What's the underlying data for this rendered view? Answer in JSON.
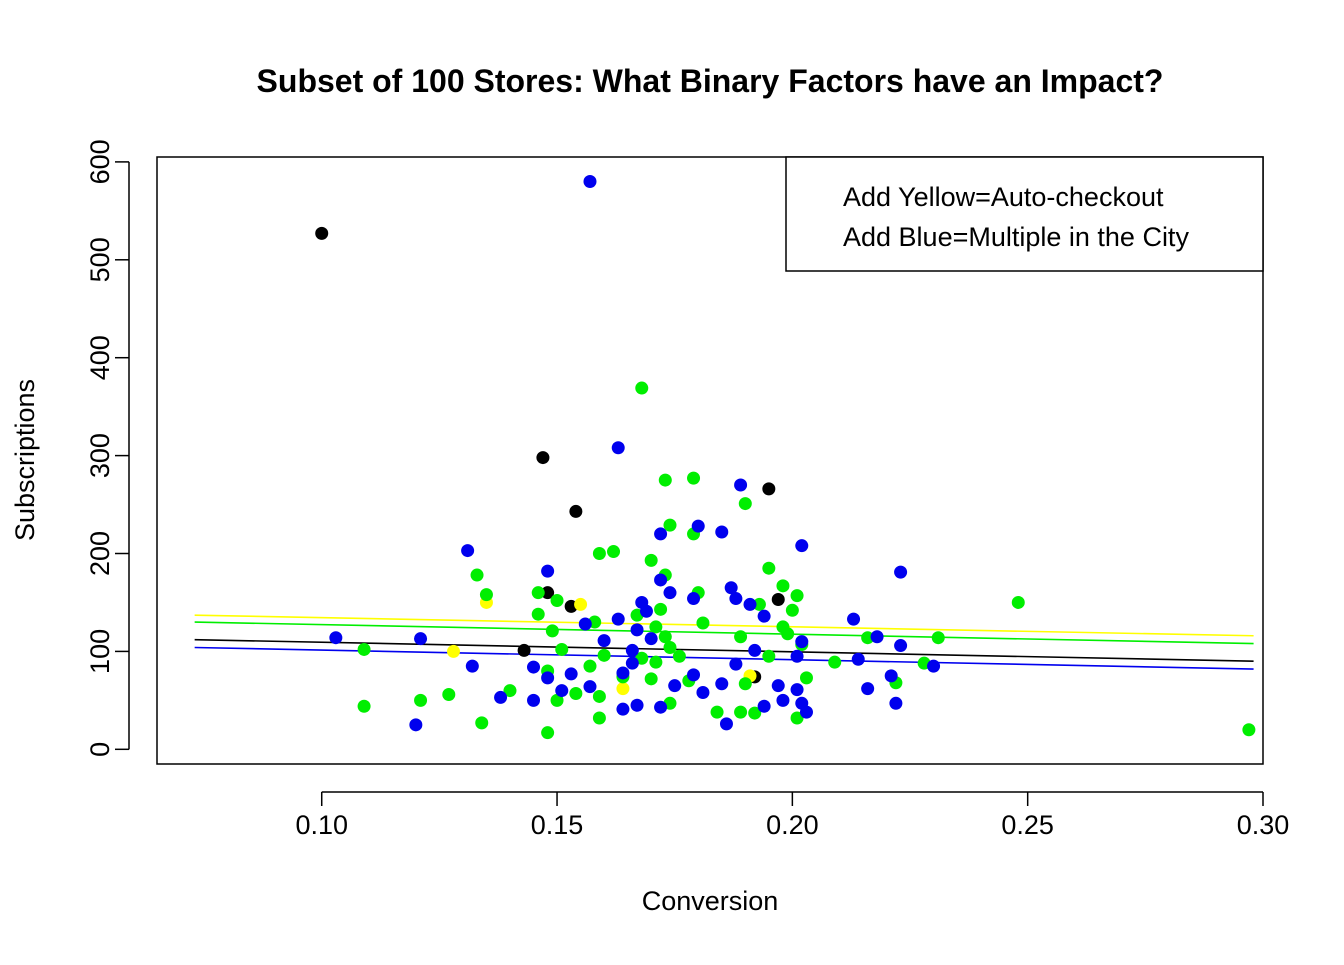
{
  "chart_data": {
    "type": "scatter",
    "title": "Subset of 100 Stores: What Binary Factors have an Impact?",
    "xlabel": "Conversion",
    "ylabel": "Subscriptions",
    "xlim": [
      0.065,
      0.3
    ],
    "ylim": [
      -15,
      605
    ],
    "x_ticks": [
      0.1,
      0.15,
      0.2,
      0.25,
      0.3
    ],
    "x_tick_labels": [
      "0.10",
      "0.15",
      "0.20",
      "0.25",
      "0.30"
    ],
    "y_ticks": [
      0,
      100,
      200,
      300,
      400,
      500,
      600
    ],
    "y_tick_labels": [
      "0",
      "100",
      "200",
      "300",
      "400",
      "500",
      "600"
    ],
    "grid": false,
    "legend": {
      "placement": "top-right",
      "entries": [
        "Add Yellow=Auto-checkout",
        "Add Blue=Multiple in the City"
      ]
    },
    "colors": {
      "black": "#000000",
      "yellow": "#FFFF00",
      "green": "#00EE00",
      "blue": "#0000EE"
    },
    "series": [
      {
        "color": "black",
        "points": [
          [
            0.1,
            527
          ],
          [
            0.147,
            298
          ],
          [
            0.154,
            243
          ],
          [
            0.195,
            266
          ],
          [
            0.148,
            160
          ],
          [
            0.153,
            146
          ],
          [
            0.143,
            101
          ],
          [
            0.192,
            74
          ],
          [
            0.197,
            153
          ]
        ]
      },
      {
        "color": "yellow",
        "points": [
          [
            0.135,
            150
          ],
          [
            0.128,
            100
          ],
          [
            0.164,
            62
          ],
          [
            0.191,
            75
          ],
          [
            0.155,
            148
          ]
        ]
      },
      {
        "color": "green",
        "points": [
          [
            0.168,
            369
          ],
          [
            0.173,
            275
          ],
          [
            0.179,
            277
          ],
          [
            0.19,
            251
          ],
          [
            0.174,
            229
          ],
          [
            0.179,
            220
          ],
          [
            0.162,
            202
          ],
          [
            0.159,
            200
          ],
          [
            0.17,
            193
          ],
          [
            0.195,
            185
          ],
          [
            0.133,
            178
          ],
          [
            0.173,
            178
          ],
          [
            0.198,
            167
          ],
          [
            0.135,
            158
          ],
          [
            0.146,
            160
          ],
          [
            0.18,
            160
          ],
          [
            0.15,
            152
          ],
          [
            0.193,
            148
          ],
          [
            0.201,
            157
          ],
          [
            0.248,
            150
          ],
          [
            0.146,
            138
          ],
          [
            0.172,
            143
          ],
          [
            0.2,
            142
          ],
          [
            0.158,
            130
          ],
          [
            0.167,
            137
          ],
          [
            0.171,
            125
          ],
          [
            0.149,
            121
          ],
          [
            0.173,
            115
          ],
          [
            0.181,
            129
          ],
          [
            0.198,
            125
          ],
          [
            0.199,
            118
          ],
          [
            0.216,
            114
          ],
          [
            0.231,
            114
          ],
          [
            0.109,
            102
          ],
          [
            0.16,
            96
          ],
          [
            0.174,
            104
          ],
          [
            0.189,
            115
          ],
          [
            0.195,
            95
          ],
          [
            0.202,
            107
          ],
          [
            0.151,
            102
          ],
          [
            0.157,
            85
          ],
          [
            0.168,
            93
          ],
          [
            0.171,
            89
          ],
          [
            0.176,
            95
          ],
          [
            0.209,
            89
          ],
          [
            0.228,
            88
          ],
          [
            0.148,
            80
          ],
          [
            0.164,
            74
          ],
          [
            0.17,
            72
          ],
          [
            0.178,
            70
          ],
          [
            0.19,
            67
          ],
          [
            0.203,
            73
          ],
          [
            0.222,
            68
          ],
          [
            0.127,
            56
          ],
          [
            0.14,
            60
          ],
          [
            0.121,
            50
          ],
          [
            0.154,
            57
          ],
          [
            0.159,
            54
          ],
          [
            0.109,
            44
          ],
          [
            0.15,
            50
          ],
          [
            0.174,
            47
          ],
          [
            0.184,
            38
          ],
          [
            0.189,
            38
          ],
          [
            0.192,
            37
          ],
          [
            0.134,
            27
          ],
          [
            0.148,
            17
          ],
          [
            0.159,
            32
          ],
          [
            0.201,
            32
          ],
          [
            0.297,
            20
          ]
        ]
      },
      {
        "color": "blue",
        "points": [
          [
            0.157,
            580
          ],
          [
            0.163,
            308
          ],
          [
            0.189,
            270
          ],
          [
            0.131,
            203
          ],
          [
            0.18,
            228
          ],
          [
            0.172,
            220
          ],
          [
            0.185,
            222
          ],
          [
            0.202,
            208
          ],
          [
            0.223,
            181
          ],
          [
            0.148,
            182
          ],
          [
            0.172,
            173
          ],
          [
            0.187,
            165
          ],
          [
            0.174,
            160
          ],
          [
            0.168,
            150
          ],
          [
            0.169,
            141
          ],
          [
            0.179,
            154
          ],
          [
            0.188,
            154
          ],
          [
            0.191,
            148
          ],
          [
            0.194,
            136
          ],
          [
            0.213,
            133
          ],
          [
            0.156,
            128
          ],
          [
            0.163,
            133
          ],
          [
            0.167,
            122
          ],
          [
            0.218,
            115
          ],
          [
            0.16,
            111
          ],
          [
            0.17,
            113
          ],
          [
            0.202,
            110
          ],
          [
            0.223,
            106
          ],
          [
            0.103,
            114
          ],
          [
            0.121,
            113
          ],
          [
            0.166,
            101
          ],
          [
            0.192,
            101
          ],
          [
            0.166,
            88
          ],
          [
            0.179,
            76
          ],
          [
            0.188,
            87
          ],
          [
            0.201,
            95
          ],
          [
            0.214,
            92
          ],
          [
            0.132,
            85
          ],
          [
            0.145,
            84
          ],
          [
            0.153,
            77
          ],
          [
            0.164,
            78
          ],
          [
            0.175,
            65
          ],
          [
            0.185,
            67
          ],
          [
            0.197,
            65
          ],
          [
            0.201,
            61
          ],
          [
            0.216,
            62
          ],
          [
            0.221,
            75
          ],
          [
            0.23,
            85
          ],
          [
            0.138,
            53
          ],
          [
            0.145,
            50
          ],
          [
            0.157,
            64
          ],
          [
            0.167,
            45
          ],
          [
            0.172,
            43
          ],
          [
            0.181,
            58
          ],
          [
            0.194,
            44
          ],
          [
            0.198,
            50
          ],
          [
            0.202,
            47
          ],
          [
            0.222,
            47
          ],
          [
            0.164,
            41
          ],
          [
            0.186,
            26
          ],
          [
            0.203,
            38
          ],
          [
            0.12,
            25
          ],
          [
            0.148,
            73
          ],
          [
            0.151,
            60
          ]
        ]
      }
    ],
    "fit_lines": [
      {
        "color": "yellow",
        "y_at_xmin": 137,
        "y_at_xmax": 116
      },
      {
        "color": "green",
        "y_at_xmin": 130,
        "y_at_xmax": 108
      },
      {
        "color": "black",
        "y_at_xmin": 112,
        "y_at_xmax": 90
      },
      {
        "color": "blue",
        "y_at_xmin": 104,
        "y_at_xmax": 82
      }
    ],
    "fit_x_range": [
      0.073,
      0.298
    ]
  }
}
